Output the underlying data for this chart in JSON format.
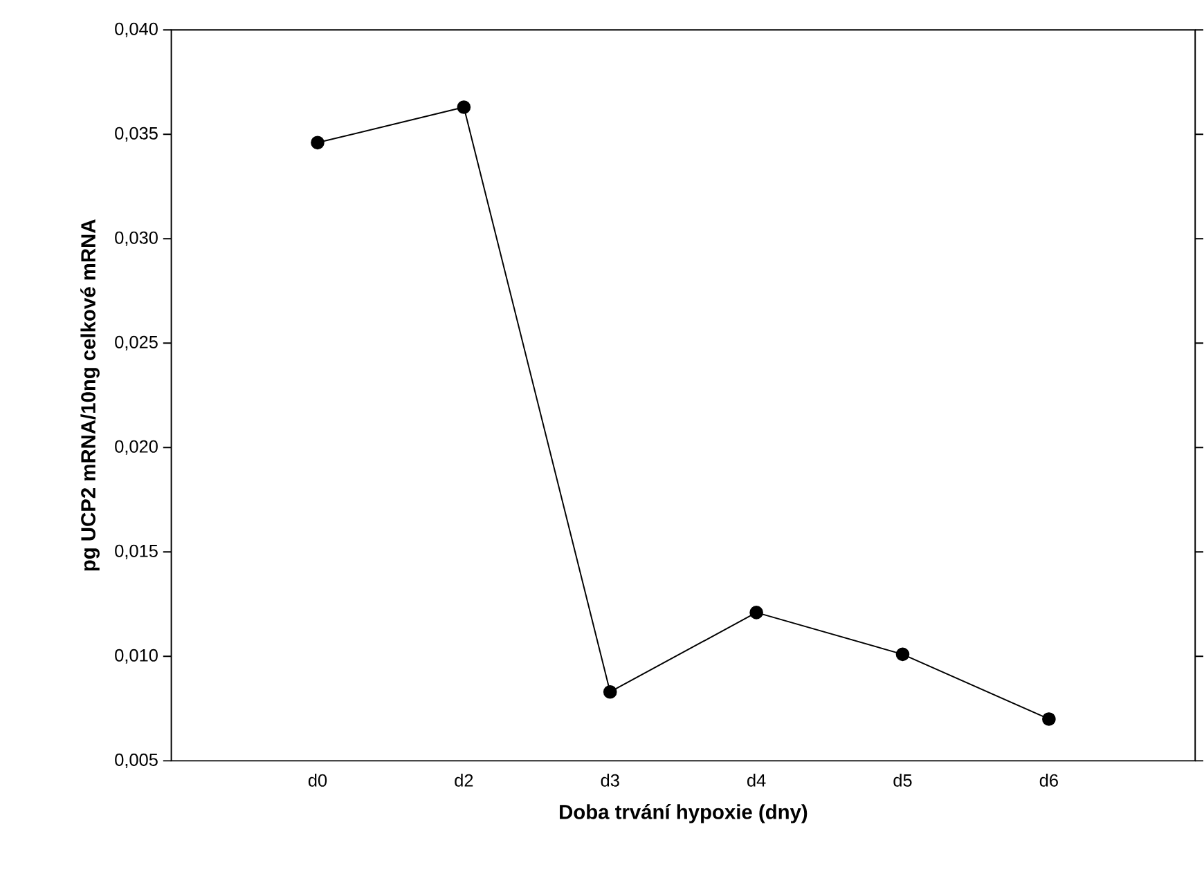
{
  "chart_data": {
    "type": "line",
    "xlabel": "Doba trvání hypoxie (dny)",
    "ylabel": "pg UCP2 mRNA/10ng celkové mRNA",
    "categories": [
      "d0",
      "d2",
      "d3",
      "d4",
      "d5",
      "d6"
    ],
    "values": [
      0.0346,
      0.0363,
      0.0083,
      0.0121,
      0.0101,
      0.007
    ],
    "color": "#000000",
    "marker": "circle",
    "line_style": "solid",
    "grid": false,
    "ylim": [
      0.005,
      0.04
    ],
    "yticks": [
      {
        "value": 0.005,
        "label": "0,005"
      },
      {
        "value": 0.01,
        "label": "0,010"
      },
      {
        "value": 0.015,
        "label": "0,015"
      },
      {
        "value": 0.02,
        "label": "0,020"
      },
      {
        "value": 0.025,
        "label": "0,025"
      },
      {
        "value": 0.03,
        "label": "0,030"
      },
      {
        "value": 0.035,
        "label": "0,035"
      },
      {
        "value": 0.04,
        "label": "0,040"
      }
    ]
  }
}
